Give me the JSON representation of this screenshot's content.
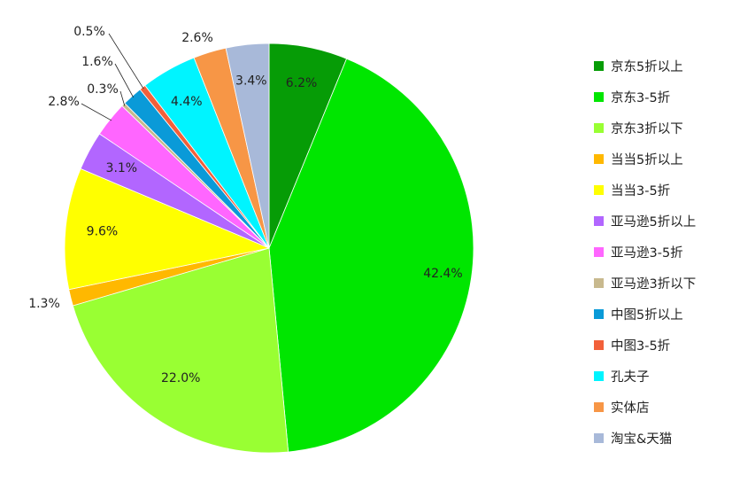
{
  "chart_data": {
    "type": "pie",
    "title": "",
    "legend_position": "right",
    "categories": [
      "京东5折以上",
      "京东3-5折",
      "京东3折以下",
      "当当5折以上",
      "当当3-5折",
      "亚马逊5折以上",
      "亚马逊3-5折",
      "亚马逊3折以下",
      "中图5折以上",
      "中图3-5折",
      "孔夫子",
      "实体店",
      "淘宝&天猫"
    ],
    "values": [
      6.2,
      42.4,
      22.0,
      1.3,
      9.6,
      3.1,
      2.8,
      0.3,
      1.6,
      0.5,
      4.4,
      2.6,
      3.4
    ],
    "labels": [
      "6.2%",
      "42.4%",
      "22.0%",
      "1.3%",
      "9.6%",
      "3.1%",
      "2.8%",
      "0.3%",
      "1.6%",
      "0.5%",
      "4.4%",
      "2.6%",
      "3.4%"
    ],
    "colors": [
      "#069C06",
      "#00E600",
      "#99FF33",
      "#FFB800",
      "#FFFF00",
      "#B266FF",
      "#FF66FF",
      "#C8B98E",
      "#0A9AD8",
      "#F2603A",
      "#00F4FF",
      "#F79646",
      "#A8B9D9"
    ]
  }
}
